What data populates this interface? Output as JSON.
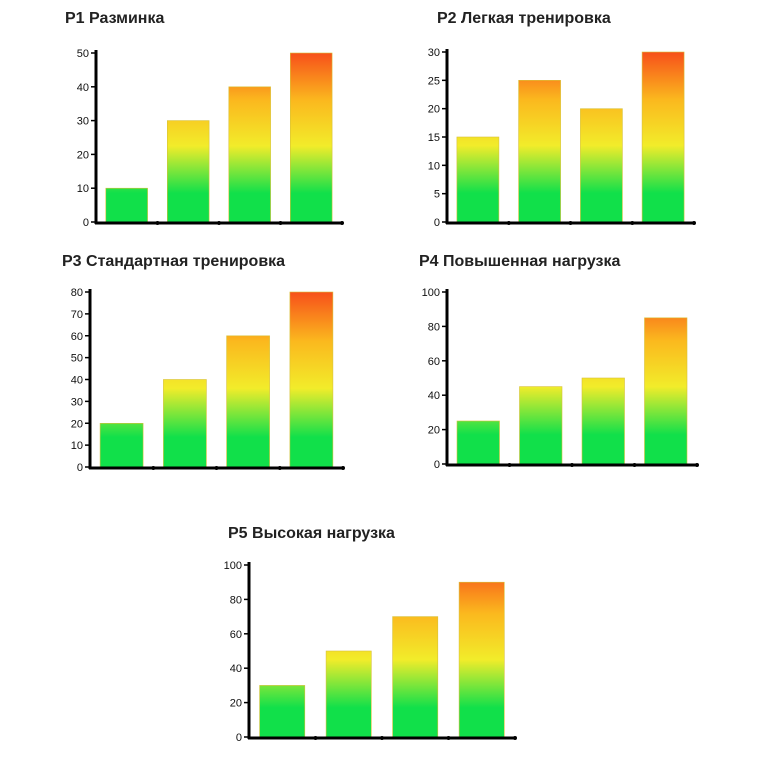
{
  "chart_data": [
    {
      "type": "bar",
      "title": "P1 Разминка",
      "categories": [
        "",
        "",
        "",
        ""
      ],
      "values": [
        10,
        30,
        40,
        50
      ],
      "ylim": [
        0,
        50
      ],
      "yticks": [
        0,
        10,
        20,
        30,
        40,
        50
      ],
      "grid": false
    },
    {
      "type": "bar",
      "title": "P2 Легкая тренировка",
      "categories": [
        "",
        "",
        "",
        ""
      ],
      "values": [
        15,
        25,
        20,
        30
      ],
      "ylim": [
        0,
        30
      ],
      "yticks": [
        0,
        5,
        10,
        15,
        20,
        25,
        30
      ],
      "grid": false
    },
    {
      "type": "bar",
      "title": "P3 Стандартная тренировка",
      "categories": [
        "",
        "",
        "",
        ""
      ],
      "values": [
        20,
        40,
        60,
        80
      ],
      "ylim": [
        0,
        80
      ],
      "yticks": [
        0,
        10,
        20,
        30,
        40,
        50,
        60,
        70,
        80
      ],
      "grid": false
    },
    {
      "type": "bar",
      "title": "P4 Повышенная нагрузка",
      "categories": [
        "",
        "",
        "",
        ""
      ],
      "values": [
        25,
        45,
        50,
        85
      ],
      "ylim": [
        0,
        100
      ],
      "yticks": [
        0,
        20,
        40,
        60,
        80,
        100
      ],
      "grid": false
    },
    {
      "type": "bar",
      "title": "P5 Высокая нагрузка",
      "categories": [
        "",
        "",
        "",
        ""
      ],
      "values": [
        30,
        50,
        70,
        90
      ],
      "ylim": [
        0,
        100
      ],
      "yticks": [
        0,
        20,
        40,
        60,
        80,
        100
      ],
      "grid": false
    }
  ],
  "colors": {
    "bar_bottom": "#11e04a",
    "bar_mid": "#f2ec2a",
    "bar_top": "#f7501a",
    "axis": "#000000"
  }
}
